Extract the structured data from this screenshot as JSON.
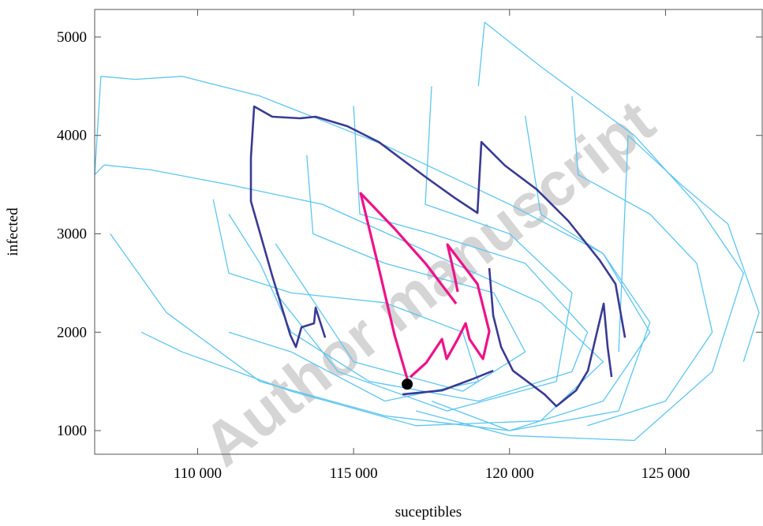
{
  "chart_data": {
    "type": "line",
    "x_label": "suceptibles",
    "y_label": "infected",
    "watermark": "Author manuscript",
    "xlim": [
      106700,
      128100
    ],
    "ylim": [
      760,
      5280
    ],
    "xticks": [
      {
        "value": 110000,
        "label": "110 000"
      },
      {
        "value": 115000,
        "label": "115 000"
      },
      {
        "value": 120000,
        "label": "120 000"
      },
      {
        "value": 125000,
        "label": "125 000"
      }
    ],
    "yticks": [
      1000,
      2000,
      3000,
      4000,
      5000
    ],
    "series": [
      {
        "color": "#5cc6f0",
        "width": 1.3,
        "x": [
          107000,
          106700,
          106900,
          108000,
          109500,
          112000,
          116000,
          120000,
          123000,
          124500,
          123000,
          120000,
          116000,
          112000,
          109000,
          107200
        ],
        "values": [
          3700,
          3600,
          4600,
          4570,
          4600,
          4400,
          3900,
          3300,
          2800,
          2000,
          1300,
          1000,
          1150,
          1500,
          2200,
          3000
        ]
      },
      {
        "color": "#5cc6f0",
        "width": 1.3,
        "x": [
          107000,
          108500,
          111000,
          114000,
          117500,
          121000,
          123000,
          121000,
          117000,
          113000,
          109500,
          108200
        ],
        "values": [
          3700,
          3650,
          3500,
          3300,
          2800,
          2300,
          1700,
          1100,
          1050,
          1400,
          1800,
          2000
        ]
      },
      {
        "color": "#5cc6f0",
        "width": 1.3,
        "x": [
          119000,
          119200,
          121000,
          124000,
          126000,
          127500,
          126500,
          124000,
          120000,
          117000
        ],
        "values": [
          4500,
          5150,
          4700,
          4000,
          3300,
          2600,
          1600,
          900,
          950,
          1200
        ]
      },
      {
        "color": "#5cc6f0",
        "width": 1.3,
        "x": [
          123500,
          123800,
          125500,
          127000,
          128000,
          127500
        ],
        "values": [
          1800,
          4000,
          3500,
          3100,
          2200,
          1700
        ]
      },
      {
        "color": "#5cc6f0",
        "width": 1.3,
        "x": [
          115000,
          115200,
          117500,
          120500,
          122500,
          122000,
          119000,
          115500,
          113000,
          112000,
          111000
        ],
        "values": [
          4300,
          3200,
          3000,
          2700,
          2000,
          1600,
          1300,
          1500,
          2000,
          2700,
          3200
        ]
      },
      {
        "color": "#5cc6f0",
        "width": 1.3,
        "x": [
          117500,
          117300,
          120000,
          122000,
          121500,
          118000,
          114500,
          112500
        ],
        "values": [
          4500,
          3300,
          3000,
          2400,
          1500,
          1200,
          1600,
          2400
        ]
      },
      {
        "color": "#5cc6f0",
        "width": 1.3,
        "x": [
          110500,
          111000,
          113000,
          116000,
          118500,
          119000,
          116000,
          113000,
          111000
        ],
        "values": [
          3350,
          2600,
          2400,
          2300,
          2000,
          1500,
          1300,
          1800,
          2000
        ]
      },
      {
        "color": "#5cc6f0",
        "width": 1.3,
        "x": [
          122000,
          122200,
          124500,
          126000,
          126500,
          125000,
          122500
        ],
        "values": [
          4400,
          3600,
          3200,
          2700,
          2000,
          1300,
          1050
        ]
      },
      {
        "color": "#5cc6f0",
        "width": 1.3,
        "x": [
          113500,
          113700,
          116000,
          119500,
          120500,
          118500,
          115000,
          112500
        ],
        "values": [
          3800,
          3000,
          2700,
          2400,
          1800,
          1400,
          1700,
          2900
        ]
      },
      {
        "color": "#5cc6f0",
        "width": 1.3,
        "x": [
          120500,
          121000,
          123000,
          124500,
          123500,
          120000,
          117500
        ],
        "values": [
          4200,
          3200,
          2800,
          2100,
          1200,
          1000,
          1300
        ]
      },
      {
        "color": "#3a3a94",
        "width": 2.6,
        "x": [
          114088,
          113784,
          113733,
          113329,
          113151,
          112974,
          112393,
          111709,
          111709,
          111811,
          112393,
          113278,
          113784,
          114796,
          115808,
          117326,
          118212,
          118971,
          119097,
          119856,
          120868,
          121880,
          122892,
          123398,
          123702,
          null,
          123272,
          123145,
          123019,
          122513,
          122133,
          121500,
          121121,
          120109,
          119730,
          119477,
          119350,
          null,
          116567,
          117832,
          118844,
          119477
        ],
        "values": [
          1945,
          2250,
          2090,
          2050,
          1849,
          1969,
          2571,
          3332,
          3773,
          4294,
          4190,
          4174,
          4190,
          4094,
          3933,
          3573,
          3372,
          3212,
          3933,
          3693,
          3452,
          3132,
          2731,
          2490,
          1945,
          null,
          1545,
          1849,
          2290,
          1609,
          1408,
          1248,
          1368,
          1609,
          1849,
          2170,
          2651,
          null,
          1368,
          1408,
          1528,
          1609
        ]
      },
      {
        "color": "#ee1289",
        "width": 3.2,
        "x": [
          116719,
          116314,
          115808,
          115226,
          116314,
          117326,
          118287,
          null,
          116820,
          117326,
          117832,
          117984,
          118338,
          118591,
          118718,
          119148,
          119350,
          118971,
          118009,
          118212,
          118338
        ],
        "values": [
          1528,
          1969,
          2651,
          3412,
          3052,
          2691,
          2290,
          null,
          1545,
          1689,
          1929,
          1729,
          1929,
          2090,
          1929,
          1729,
          2009,
          2490,
          2891,
          2611,
          2410
        ]
      }
    ],
    "marker": {
      "x": 116719,
      "y": 1472,
      "color": "#000000"
    }
  }
}
